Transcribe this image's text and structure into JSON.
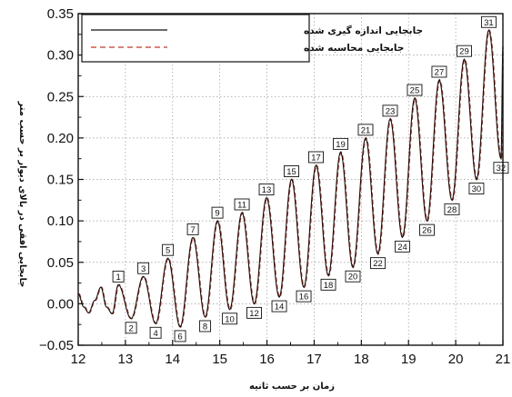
{
  "chart_data": {
    "type": "line",
    "xlabel": "زمان بر حسب ثانیه",
    "ylabel": "جابجایی افقی در بالای دیوار بر حسب متر",
    "xlim": [
      12,
      21
    ],
    "ylim": [
      -0.05,
      0.35
    ],
    "x_ticks": [
      12,
      13,
      14,
      15,
      16,
      17,
      18,
      19,
      20,
      21
    ],
    "y_ticks": [
      -0.05,
      0.0,
      0.05,
      0.1,
      0.15,
      0.2,
      0.25,
      0.3,
      0.35
    ],
    "y_tick_labels": [
      "−0.05",
      "0.00",
      "0.05",
      "0.10",
      "0.15",
      "0.20",
      "0.25",
      "0.30",
      "0.35"
    ],
    "grid": true,
    "legend_position": "top-left",
    "series": [
      {
        "name": "جابجایی اندازه گیری شده",
        "color": "#111111",
        "style": "solid"
      },
      {
        "name": "جابجایی محاسبه شده",
        "color": "#c0392b",
        "style": "dashed"
      }
    ],
    "extrema": [
      {
        "label": "1",
        "t": 12.85,
        "y": 0.023
      },
      {
        "label": "2",
        "t": 13.12,
        "y": -0.018
      },
      {
        "label": "3",
        "t": 13.38,
        "y": 0.033
      },
      {
        "label": "4",
        "t": 13.64,
        "y": -0.024
      },
      {
        "label": "5",
        "t": 13.9,
        "y": 0.055
      },
      {
        "label": "6",
        "t": 14.16,
        "y": -0.028
      },
      {
        "label": "7",
        "t": 14.43,
        "y": 0.08
      },
      {
        "label": "8",
        "t": 14.69,
        "y": -0.016
      },
      {
        "label": "9",
        "t": 14.95,
        "y": 0.1
      },
      {
        "label": "10",
        "t": 15.21,
        "y": -0.007
      },
      {
        "label": "11",
        "t": 15.47,
        "y": 0.11
      },
      {
        "label": "12",
        "t": 15.73,
        "y": 0.0
      },
      {
        "label": "13",
        "t": 15.99,
        "y": 0.128
      },
      {
        "label": "14",
        "t": 16.26,
        "y": 0.008
      },
      {
        "label": "15",
        "t": 16.52,
        "y": 0.15
      },
      {
        "label": "16",
        "t": 16.78,
        "y": 0.02
      },
      {
        "label": "17",
        "t": 17.04,
        "y": 0.167
      },
      {
        "label": "18",
        "t": 17.3,
        "y": 0.034
      },
      {
        "label": "19",
        "t": 17.56,
        "y": 0.183
      },
      {
        "label": "20",
        "t": 17.82,
        "y": 0.044
      },
      {
        "label": "21",
        "t": 18.09,
        "y": 0.2
      },
      {
        "label": "22",
        "t": 18.35,
        "y": 0.06
      },
      {
        "label": "23",
        "t": 18.61,
        "y": 0.223
      },
      {
        "label": "24",
        "t": 18.87,
        "y": 0.08
      },
      {
        "label": "25",
        "t": 19.13,
        "y": 0.248
      },
      {
        "label": "26",
        "t": 19.39,
        "y": 0.1
      },
      {
        "label": "27",
        "t": 19.65,
        "y": 0.27
      },
      {
        "label": "28",
        "t": 19.92,
        "y": 0.125
      },
      {
        "label": "29",
        "t": 20.18,
        "y": 0.295
      },
      {
        "label": "30",
        "t": 20.44,
        "y": 0.15
      },
      {
        "label": "31",
        "t": 20.7,
        "y": 0.33
      },
      {
        "label": "32",
        "t": 20.96,
        "y": 0.175
      }
    ]
  }
}
